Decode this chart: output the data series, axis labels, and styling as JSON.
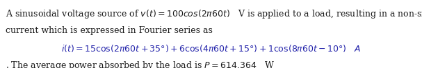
{
  "background_color": "#ffffff",
  "text_color": "#1a1a1a",
  "blue_color": "#2222aa",
  "figsize": [
    6.07,
    0.99
  ],
  "dpi": 100,
  "font_size": 9.0,
  "line1_plain": "A sinusoidal voltage source of ",
  "line1_math": "$v(t)$",
  "line1_after_math": " = 100",
  "line1_cos": "cos",
  "line1_paren": "(2π60",
  "line1_t": "t",
  "line1_rest": ")    V is applied to a load, resulting in a non-sinusoidal",
  "line2": "current which is expressed in Fourier series as",
  "line3": "$i(t) = 15\\cos(2\\pi 60t + 35°) + 6\\cos(4\\pi 60t + 15°) + 1\\cos(8\\pi 60t - 10°)$   A",
  "line4_start": ". The average power absorbed by the load is ",
  "line4_math": "$P$",
  "line4_rest": " = 614.364   W"
}
